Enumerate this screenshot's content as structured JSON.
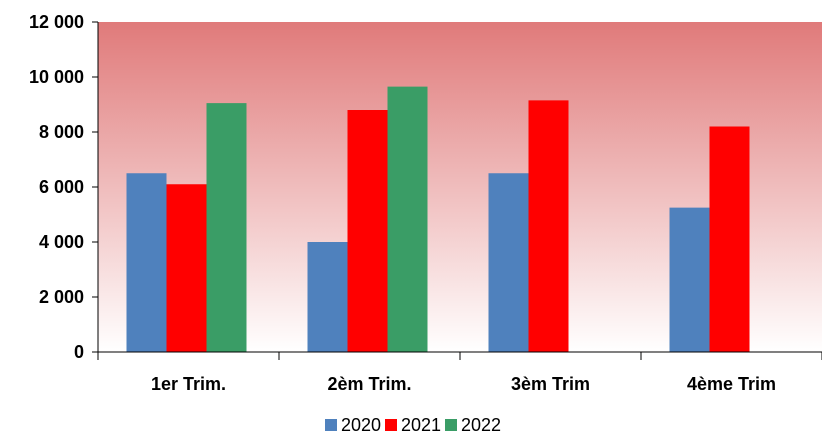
{
  "colors": {
    "plot_top": "#e07a7a",
    "plot_bottom": "#ffffff",
    "axis": "#000000"
  },
  "chart_data": {
    "type": "bar",
    "categories": [
      "1er Trim.",
      "2èm Trim.",
      "3èm Trim",
      "4ème Trim"
    ],
    "series": [
      {
        "name": "2020",
        "color": "#4f81bd",
        "values": [
          6500,
          4000,
          6500,
          5250
        ]
      },
      {
        "name": "2021",
        "color": "#ff0000",
        "values": [
          6100,
          8800,
          9150,
          8200
        ]
      },
      {
        "name": "2022",
        "color": "#3a9d66",
        "values": [
          9050,
          9650,
          null,
          null
        ]
      }
    ],
    "ylim": [
      0,
      12000
    ],
    "yticks": [
      0,
      2000,
      4000,
      6000,
      8000,
      10000,
      12000
    ],
    "ytick_labels": [
      "0",
      "2 000",
      "4 000",
      "6 000",
      "8 000",
      "10 000",
      "12 000"
    ],
    "grid": false,
    "legend_position": "bottom",
    "title": "",
    "xlabel": "",
    "ylabel": ""
  }
}
